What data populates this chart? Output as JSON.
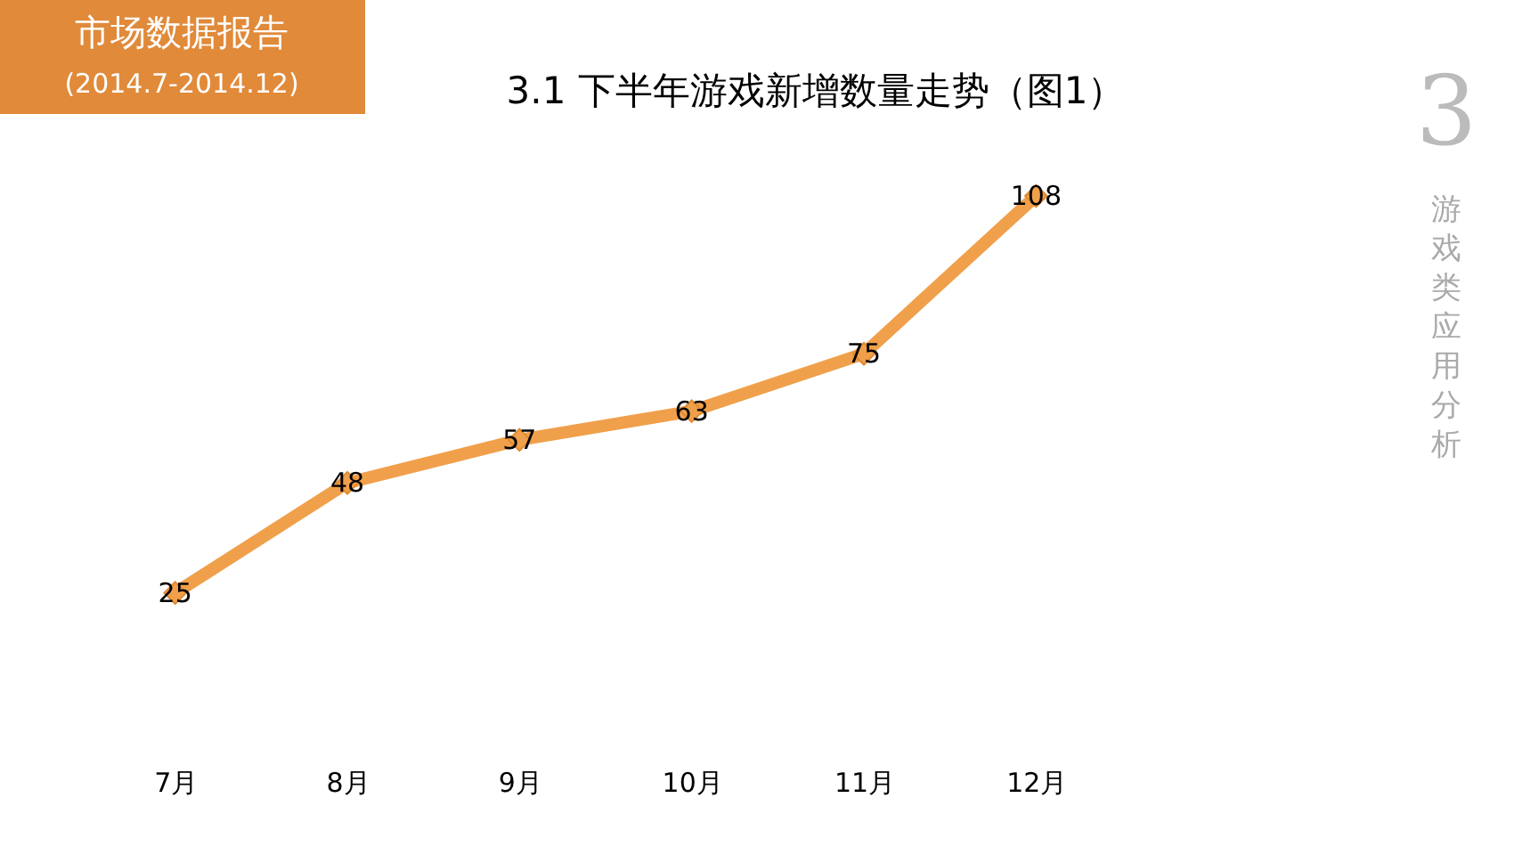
{
  "chart_data": {
    "type": "line",
    "title": "3.1  下半年游戏新增数量走势（图1）",
    "subtitle": "(2014.7-2014.12)",
    "annotations": [
      "市场数据报告",
      "3",
      "游戏类应用分析"
    ],
    "categories": [
      "7月",
      "8月",
      "9月",
      "10月",
      "11月",
      "12月"
    ],
    "series": [
      {
        "color": "#f0a04b",
        "values": [
          25,
          48,
          57,
          63,
          75,
          108
        ]
      }
    ],
    "data_labels": true,
    "marker": "diamond",
    "line_style": "solid",
    "grid": false
  }
}
